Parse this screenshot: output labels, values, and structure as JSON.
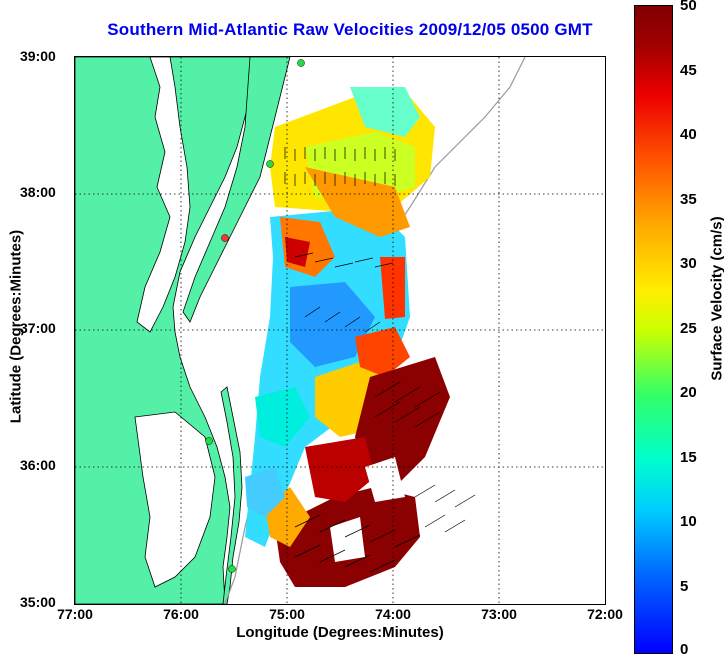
{
  "title": "Southern Mid-Atlantic Raw Velocities 2009/12/05 0500 GMT",
  "x_axis": {
    "label": "Longitude (Degrees:Minutes)",
    "ticks": [
      "77:00",
      "76:00",
      "75:00",
      "74:00",
      "73:00",
      "72:00"
    ]
  },
  "y_axis": {
    "label": "Latitude (Degrees:Minutes)",
    "ticks": [
      "39:00",
      "38:00",
      "37:00",
      "36:00",
      "35:00"
    ]
  },
  "colorbar": {
    "label": "Surface Velocity (cm/s)",
    "ticks": [
      "50",
      "45",
      "40",
      "35",
      "30",
      "25",
      "20",
      "15",
      "10",
      "5",
      "0"
    ],
    "range": [
      0,
      50
    ]
  },
  "colors": {
    "title": "#0000ee",
    "land": "#55f0a8",
    "coastline": "#000000",
    "bathymetry": "#999999",
    "station": "#22dd44",
    "station_alt": "#ff3333"
  }
}
